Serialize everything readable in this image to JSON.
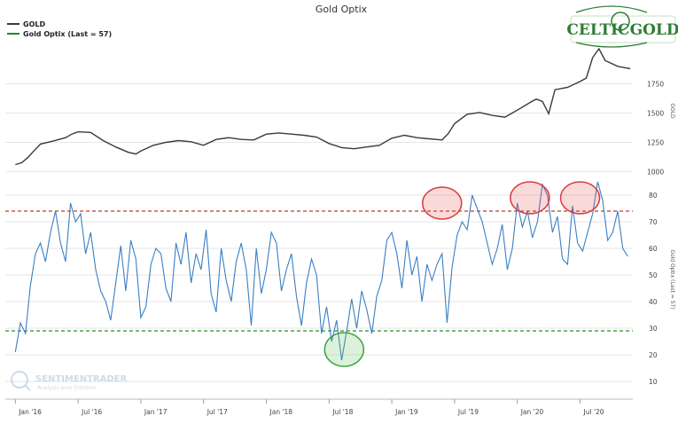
{
  "chart_data": {
    "type": "line",
    "title": "Gold Optix",
    "legend": [
      {
        "label": "GOLD",
        "color": "#3a3a3a"
      },
      {
        "label": "Gold Optix (Last = 57)",
        "color": "#1e8a2e"
      }
    ],
    "legend_position": "top-left",
    "x_ticks": [
      "Jan '16",
      "Jul '16",
      "Jan '17",
      "Jul '17",
      "Jan '18",
      "Jul '18",
      "Jan '19",
      "Jul '19",
      "Jan '20",
      "Jul '20"
    ],
    "upper_panel": {
      "ylabel": "GOLD",
      "yticks": [
        1000,
        1250,
        1500,
        1750
      ],
      "ylim": [
        950,
        2050
      ],
      "series": {
        "name": "GOLD",
        "color": "#3a3a3a",
        "x": [
          2016.0,
          2016.05,
          2016.1,
          2016.15,
          2016.2,
          2016.3,
          2016.4,
          2016.45,
          2016.5,
          2016.6,
          2016.7,
          2016.8,
          2016.9,
          2016.96,
          2017.0,
          2017.1,
          2017.2,
          2017.3,
          2017.4,
          2017.5,
          2017.6,
          2017.7,
          2017.8,
          2017.9,
          2018.0,
          2018.1,
          2018.2,
          2018.3,
          2018.4,
          2018.5,
          2018.6,
          2018.7,
          2018.8,
          2018.9,
          2019.0,
          2019.1,
          2019.2,
          2019.3,
          2019.4,
          2019.45,
          2019.5,
          2019.6,
          2019.7,
          2019.8,
          2019.9,
          2020.0,
          2020.1,
          2020.15,
          2020.2,
          2020.25,
          2020.3,
          2020.4,
          2020.5,
          2020.55,
          2020.6,
          2020.65,
          2020.7,
          2020.8,
          2020.9
        ],
        "y": [
          1060,
          1075,
          1120,
          1180,
          1235,
          1260,
          1290,
          1320,
          1340,
          1335,
          1265,
          1210,
          1165,
          1150,
          1175,
          1225,
          1250,
          1265,
          1255,
          1225,
          1275,
          1290,
          1275,
          1270,
          1320,
          1330,
          1320,
          1310,
          1295,
          1240,
          1205,
          1195,
          1210,
          1225,
          1285,
          1310,
          1290,
          1280,
          1270,
          1325,
          1410,
          1490,
          1505,
          1480,
          1465,
          1525,
          1590,
          1620,
          1600,
          1495,
          1700,
          1720,
          1770,
          1800,
          1975,
          2050,
          1950,
          1900,
          1880
        ]
      }
    },
    "lower_panel": {
      "ylabel": "Gold Optix (Last = 57)",
      "yticks": [
        10,
        20,
        30,
        40,
        50,
        60,
        70,
        80
      ],
      "ylim": [
        5,
        85
      ],
      "series": {
        "name": "Gold Optix (Last = 57)",
        "color": "#3a7fc4",
        "x": [
          2016.0,
          2016.04,
          2016.08,
          2016.12,
          2016.16,
          2016.2,
          2016.24,
          2016.28,
          2016.32,
          2016.36,
          2016.4,
          2016.44,
          2016.48,
          2016.52,
          2016.56,
          2016.6,
          2016.64,
          2016.68,
          2016.72,
          2016.76,
          2016.8,
          2016.84,
          2016.88,
          2016.92,
          2016.96,
          2017.0,
          2017.04,
          2017.08,
          2017.12,
          2017.16,
          2017.2,
          2017.24,
          2017.28,
          2017.32,
          2017.36,
          2017.4,
          2017.44,
          2017.48,
          2017.52,
          2017.56,
          2017.6,
          2017.64,
          2017.68,
          2017.72,
          2017.76,
          2017.8,
          2017.84,
          2017.88,
          2017.92,
          2017.96,
          2018.0,
          2018.04,
          2018.08,
          2018.12,
          2018.16,
          2018.2,
          2018.24,
          2018.28,
          2018.32,
          2018.36,
          2018.4,
          2018.44,
          2018.48,
          2018.52,
          2018.56,
          2018.6,
          2018.64,
          2018.68,
          2018.72,
          2018.76,
          2018.8,
          2018.84,
          2018.88,
          2018.92,
          2018.96,
          2019.0,
          2019.04,
          2019.08,
          2019.12,
          2019.16,
          2019.2,
          2019.24,
          2019.28,
          2019.32,
          2019.36,
          2019.4,
          2019.44,
          2019.48,
          2019.52,
          2019.56,
          2019.6,
          2019.64,
          2019.68,
          2019.72,
          2019.76,
          2019.8,
          2019.84,
          2019.88,
          2019.92,
          2019.96,
          2020.0,
          2020.04,
          2020.08,
          2020.12,
          2020.16,
          2020.2,
          2020.24,
          2020.28,
          2020.32,
          2020.36,
          2020.4,
          2020.44,
          2020.48,
          2020.52,
          2020.56,
          2020.6,
          2020.64,
          2020.68,
          2020.72,
          2020.76,
          2020.8,
          2020.84,
          2020.88
        ],
        "y": [
          21,
          32,
          28,
          46,
          58,
          62,
          55,
          66,
          74,
          62,
          55,
          77,
          70,
          73,
          58,
          66,
          52,
          44,
          40,
          33,
          47,
          61,
          44,
          63,
          56,
          34,
          38,
          54,
          60,
          58,
          45,
          40,
          62,
          54,
          66,
          47,
          58,
          52,
          67,
          43,
          36,
          60,
          48,
          40,
          55,
          62,
          52,
          31,
          60,
          43,
          52,
          66,
          62,
          44,
          52,
          58,
          42,
          31,
          47,
          56,
          50,
          28,
          38,
          25,
          33,
          18,
          29,
          41,
          30,
          44,
          37,
          28,
          42,
          48,
          63,
          66,
          58,
          45,
          63,
          50,
          57,
          40,
          54,
          48,
          54,
          58,
          32,
          53,
          65,
          70,
          67,
          80,
          75,
          70,
          62,
          54,
          60,
          69,
          52,
          60,
          77,
          68,
          74,
          64,
          70,
          84,
          80,
          66,
          72,
          56,
          54,
          76,
          62,
          59,
          66,
          73,
          85,
          78,
          63,
          66,
          74,
          60,
          57
        ]
      },
      "reference_lines": [
        {
          "value": 74,
          "color": "#c0392b",
          "style": "dashed"
        },
        {
          "value": 29,
          "color": "#2e8b2e",
          "style": "dashed"
        }
      ],
      "annotations": [
        {
          "shape": "circle",
          "color": "red",
          "x": 2019.4,
          "y": 77
        },
        {
          "shape": "circle",
          "color": "red",
          "x": 2020.1,
          "y": 79
        },
        {
          "shape": "circle",
          "color": "red",
          "x": 2020.5,
          "y": 79
        },
        {
          "shape": "circle",
          "color": "green",
          "x": 2018.62,
          "y": 22
        }
      ]
    }
  },
  "logo": {
    "text": "CELTICGOLD",
    "color": "#2e7d32"
  },
  "watermark": {
    "text": "SENTIMENTRADER",
    "subtext": "Analysis over Emotion"
  }
}
